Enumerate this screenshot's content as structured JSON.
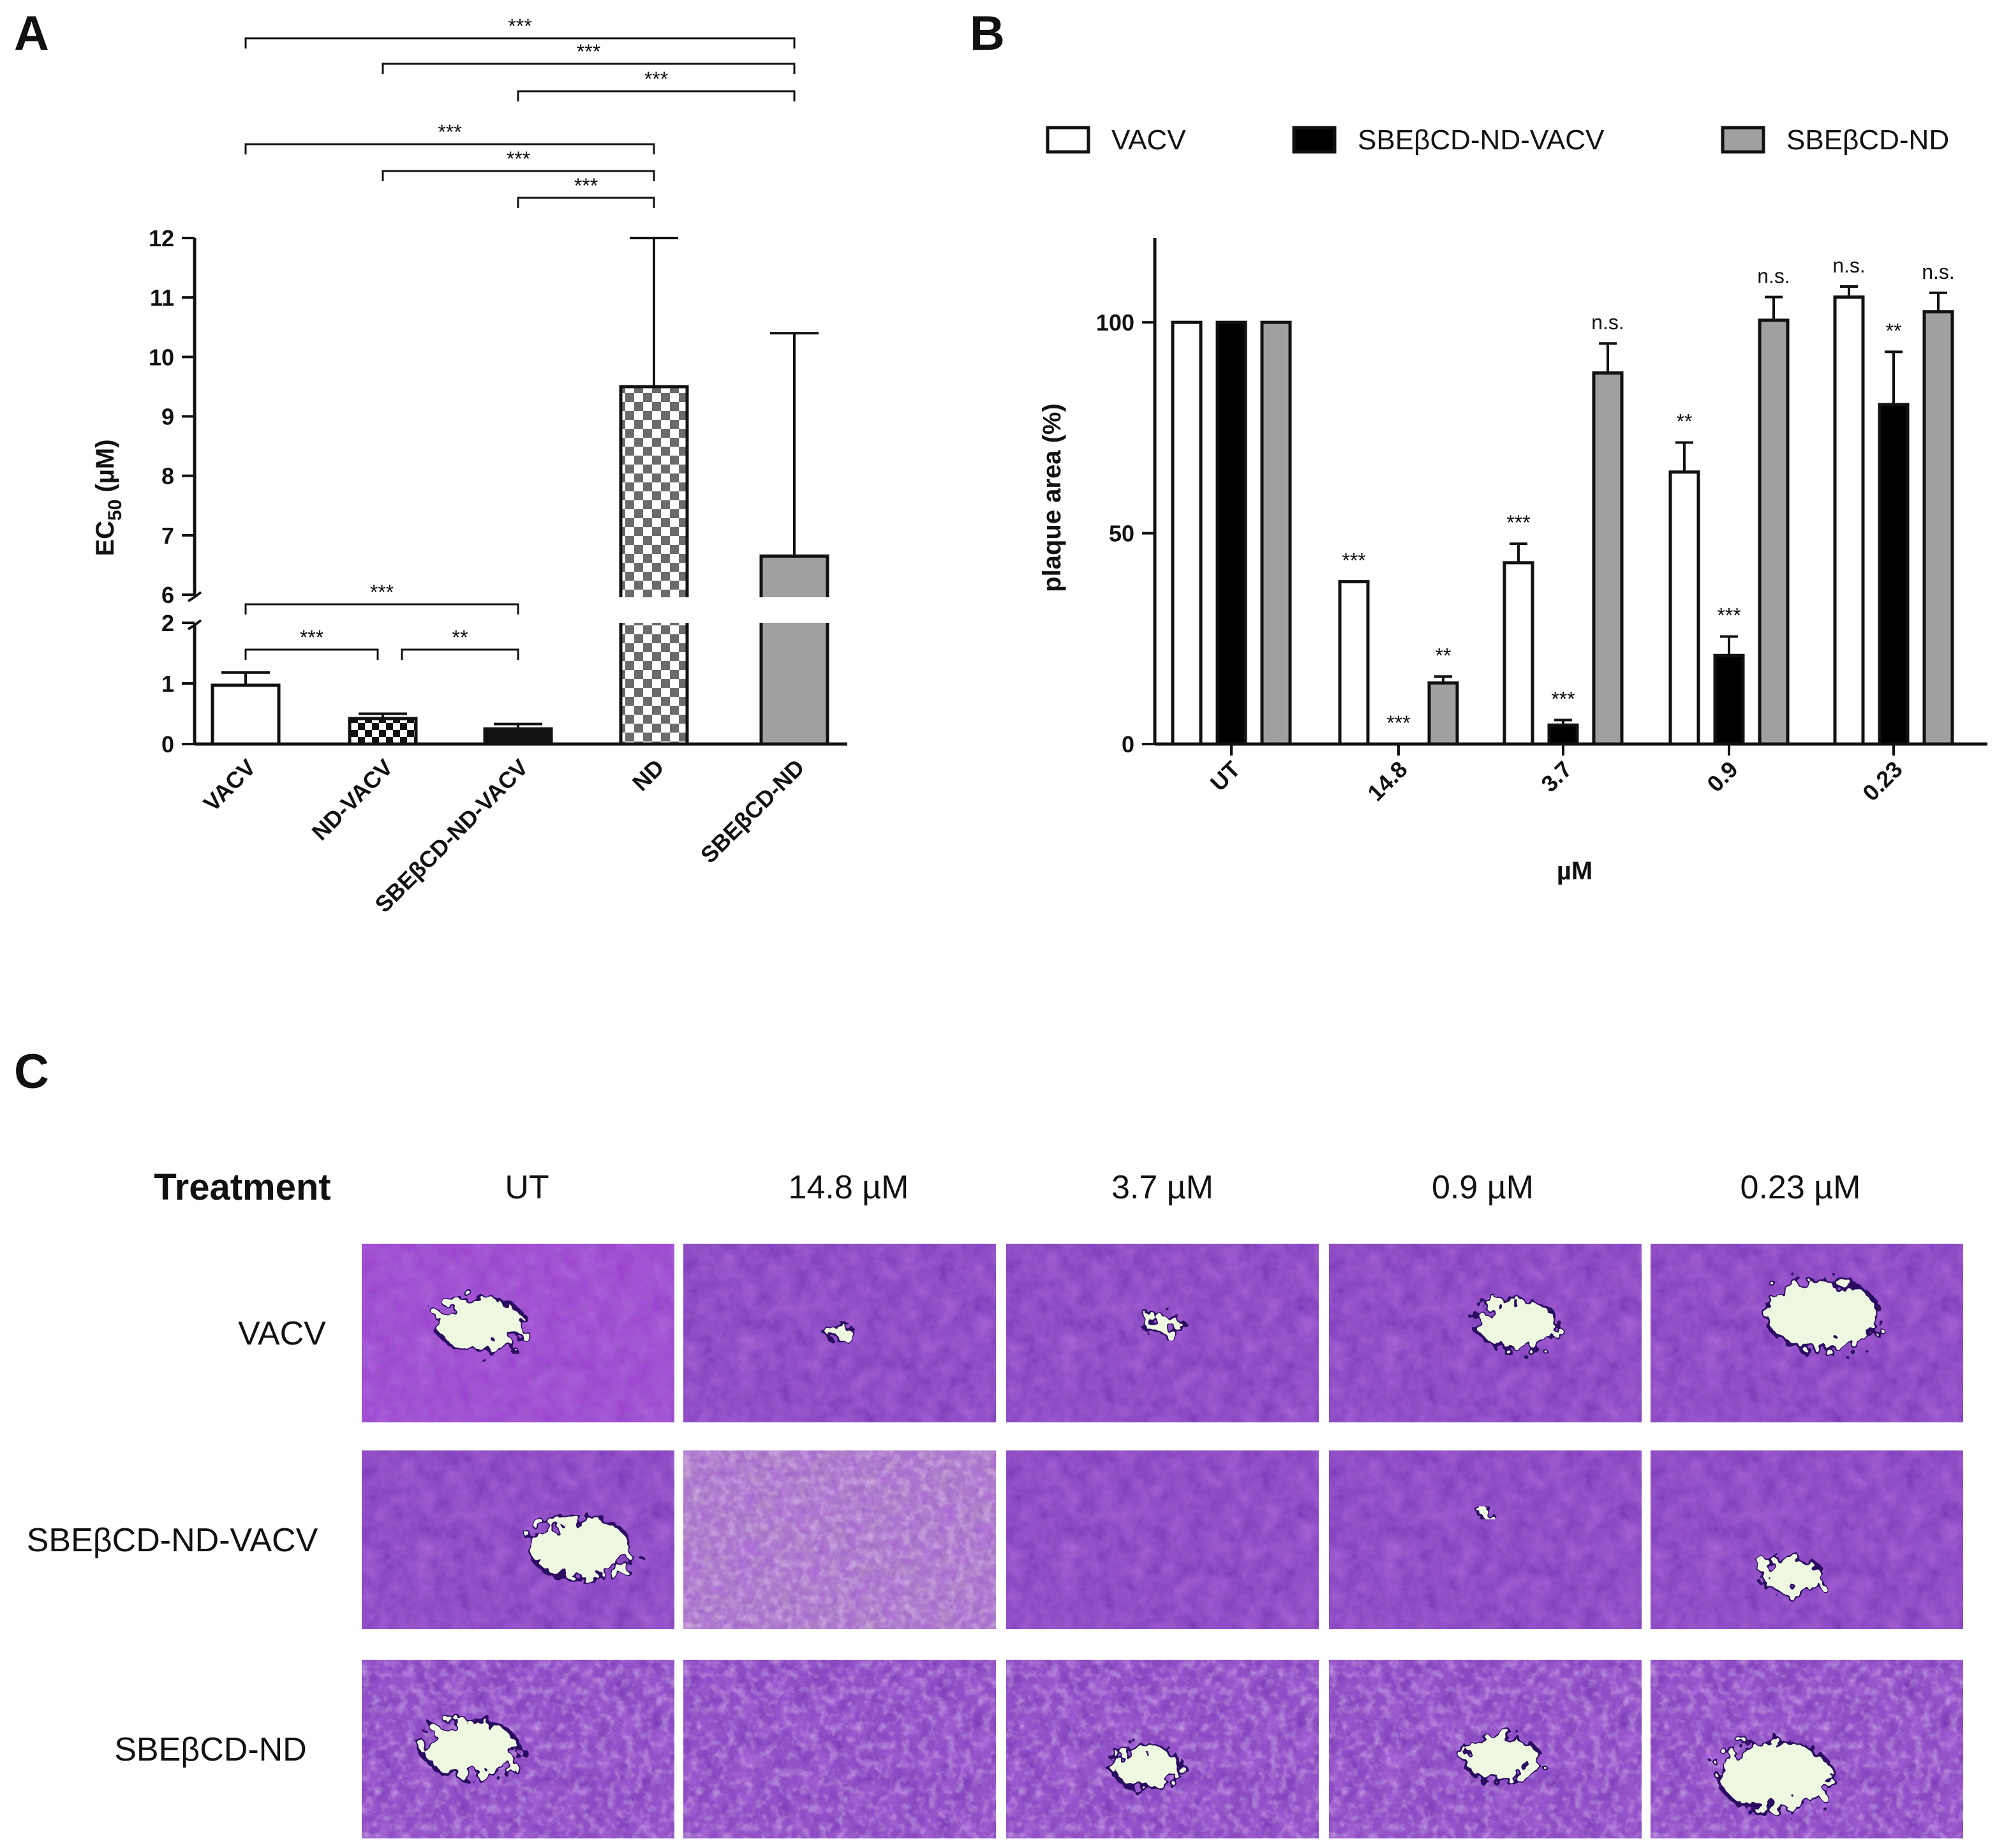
{
  "panels": {
    "A": "A",
    "B": "B",
    "C": "C"
  },
  "colors": {
    "vacv": "#ffffff",
    "sbe_nd_vacv": "#000000",
    "sbe_nd": "#a0a0a0",
    "axis": "#111111"
  },
  "chart_data": [
    {
      "type": "bar",
      "panel": "A",
      "categories": [
        "VACV",
        "ND-VACV",
        "SBEβCD-ND-VACV",
        "ND",
        "SBEβCD-ND"
      ],
      "values": [
        0.97,
        0.42,
        0.25,
        9.5,
        6.65
      ],
      "errors_upper": [
        1.18,
        0.5,
        0.33,
        12.0,
        10.4
      ],
      "fills": [
        "white",
        "checker-small",
        "black",
        "checker",
        "gray"
      ],
      "ylabel_main": "EC",
      "ylabel_sub": "50",
      "ylabel_unit": " (µM)",
      "ylim_lower": [
        0,
        2
      ],
      "ylim_upper": [
        6,
        12
      ],
      "yticks_lower": [
        "0",
        "1",
        "2"
      ],
      "yticks_upper": [
        "6",
        "7",
        "8",
        "9",
        "10",
        "11",
        "12"
      ],
      "brackets": [
        {
          "from": 0,
          "to": 4,
          "label": "***"
        },
        {
          "from": 1,
          "to": 4,
          "label": "***"
        },
        {
          "from": 2,
          "to": 4,
          "label": "***"
        },
        {
          "from": 0,
          "to": 3,
          "label": "***"
        },
        {
          "from": 1,
          "to": 3,
          "label": "***"
        },
        {
          "from": 2,
          "to": 3,
          "label": "***"
        },
        {
          "from": 0,
          "to": 2,
          "label": "***"
        },
        {
          "from": 0,
          "to": 1,
          "label": "***"
        },
        {
          "from": 1,
          "to": 2,
          "label": "**"
        }
      ]
    },
    {
      "type": "bar",
      "panel": "B",
      "categories": [
        "UT",
        "14.8",
        "3.7",
        "0.9",
        "0.23"
      ],
      "series": [
        {
          "name": "VACV",
          "values": [
            100,
            38.5,
            43,
            64.5,
            106
          ],
          "errors_upper": [
            0,
            0,
            4.5,
            7,
            2.5
          ],
          "labels": [
            "",
            "***",
            "***",
            "**",
            "n.s."
          ]
        },
        {
          "name": "SBEβCD-ND-VACV",
          "values": [
            100,
            0,
            4.5,
            21,
            80.5
          ],
          "errors_upper": [
            0,
            0,
            1.2,
            4.5,
            12.5
          ],
          "labels": [
            "",
            "***",
            "***",
            "***",
            "**"
          ]
        },
        {
          "name": "SBEβCD-ND",
          "values": [
            100,
            14.5,
            88,
            100.5,
            102.5
          ],
          "errors_upper": [
            0,
            1.5,
            7,
            5.5,
            4.5
          ],
          "labels": [
            "",
            "**",
            "n.s.",
            "n.s.",
            "n.s."
          ]
        }
      ],
      "ylabel": "plaque area (%)",
      "xlabel": "µM",
      "ylim": [
        0,
        120
      ],
      "yticks": [
        "0",
        "50",
        "100"
      ]
    }
  ],
  "panel_c": {
    "treatment_label": "Treatment",
    "columns": [
      "UT",
      "14.8 µM",
      "3.7 µM",
      "0.9 µM",
      "0.23 µM"
    ],
    "rows": [
      "VACV",
      "SBEβCD-ND-VACV",
      "SBEβCD-ND"
    ]
  }
}
